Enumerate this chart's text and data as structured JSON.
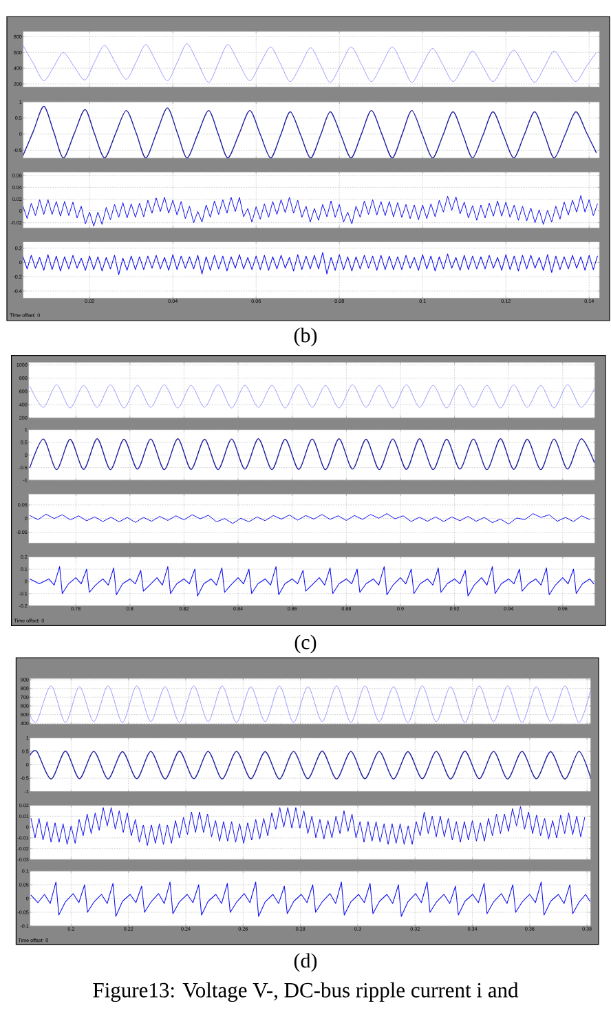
{
  "chart_data": [
    {
      "type": "line",
      "x": [
        0.004,
        0.0065,
        0.009,
        0.0114,
        0.0137,
        0.0163,
        0.0189,
        0.0212,
        0.0236,
        0.0262,
        0.0288,
        0.0312,
        0.0335,
        0.0361,
        0.0387,
        0.0411,
        0.0434,
        0.046,
        0.0486,
        0.0509,
        0.0532,
        0.0559,
        0.0585,
        0.061,
        0.0635,
        0.0659,
        0.0682,
        0.0707,
        0.0731,
        0.0755,
        0.0778,
        0.0803,
        0.0828,
        0.0853,
        0.0877,
        0.0902,
        0.0927,
        0.0951,
        0.0974,
        0.0999,
        0.1024,
        0.1049,
        0.1073,
        0.1097,
        0.112,
        0.1145,
        0.1169,
        0.1194,
        0.1219,
        0.1244,
        0.1269,
        0.1293,
        0.1316,
        0.1342,
        0.1368,
        0.1393,
        0.1417
      ],
      "values": [
        690,
        460,
        240,
        420,
        600,
        420,
        250,
        480,
        690,
        470,
        260,
        480,
        700,
        470,
        240,
        480,
        710,
        470,
        220,
        460,
        700,
        460,
        240,
        460,
        670,
        450,
        230,
        440,
        660,
        440,
        220,
        440,
        670,
        450,
        230,
        450,
        670,
        450,
        220,
        440,
        650,
        440,
        230,
        420,
        620,
        420,
        230,
        430,
        630,
        430,
        220,
        420,
        620,
        420,
        230,
        420,
        600
      ],
      "color": "#8080ff",
      "xlim": [
        0.004,
        0.1425
      ],
      "xticks": [
        0.02,
        0.04,
        0.06,
        0.08,
        0.1,
        0.12,
        0.14
      ],
      "ylim": [
        160,
        870
      ],
      "yticks": [
        200,
        400,
        600,
        800
      ],
      "grid": true,
      "tick_labels": "y"
    },
    {
      "type": "line",
      "x": [
        0.004,
        0.0065,
        0.009,
        0.0114,
        0.0137,
        0.0163,
        0.0189,
        0.0212,
        0.0236,
        0.0262,
        0.0288,
        0.0312,
        0.0335,
        0.0361,
        0.0387,
        0.0411,
        0.0434,
        0.046,
        0.0486,
        0.0509,
        0.0532,
        0.0559,
        0.0585,
        0.061,
        0.0635,
        0.0659,
        0.0682,
        0.0707,
        0.0731,
        0.0755,
        0.0778,
        0.0803,
        0.0828,
        0.0853,
        0.0877,
        0.0902,
        0.0927,
        0.0951,
        0.0974,
        0.0999,
        0.1024,
        0.1049,
        0.1073,
        0.1097,
        0.112,
        0.1145,
        0.1169,
        0.1194,
        0.1219,
        0.1244,
        0.1269,
        0.1293,
        0.1316,
        0.1342,
        0.1368,
        0.1393,
        0.1417
      ],
      "values": [
        -0.67,
        0.09,
        0.86,
        0.06,
        -0.74,
        0.01,
        0.76,
        0.0,
        -0.74,
        0.0,
        0.73,
        0.03,
        -0.74,
        0.04,
        0.81,
        0.03,
        -0.74,
        0.0,
        0.73,
        0.0,
        -0.74,
        0.0,
        0.73,
        -0.01,
        -0.74,
        -0.03,
        0.69,
        -0.03,
        -0.74,
        -0.03,
        0.69,
        -0.01,
        -0.74,
        0.0,
        0.73,
        0.0,
        -0.74,
        0.0,
        0.73,
        -0.01,
        -0.74,
        -0.03,
        0.69,
        -0.03,
        -0.74,
        -0.03,
        0.69,
        -0.03,
        -0.74,
        -0.03,
        0.69,
        -0.03,
        -0.74,
        -0.03,
        0.69,
        0.06,
        -0.57
      ],
      "color": "#2020a0",
      "xlim": [
        0.004,
        0.1425
      ],
      "xticks": [
        0.02,
        0.04,
        0.06,
        0.08,
        0.1,
        0.12,
        0.14
      ],
      "ylim": [
        -0.75,
        1
      ],
      "yticks": [
        -0.5,
        0,
        0.5,
        1
      ],
      "grid": true,
      "tick_labels": "y"
    },
    {
      "type": "line",
      "x": [
        0.004,
        0.005,
        0.006,
        0.007,
        0.008,
        0.009,
        0.01,
        0.011,
        0.012,
        0.013,
        0.014,
        0.015,
        0.016,
        0.017,
        0.018,
        0.019,
        0.02,
        0.021,
        0.022,
        0.023,
        0.024,
        0.025,
        0.026,
        0.027,
        0.028,
        0.029,
        0.03,
        0.031,
        0.032,
        0.033,
        0.034,
        0.035,
        0.036,
        0.037,
        0.038,
        0.039,
        0.04,
        0.041,
        0.042,
        0.043,
        0.044,
        0.045,
        0.046,
        0.047,
        0.048,
        0.049,
        0.05,
        0.051,
        0.052,
        0.053,
        0.054,
        0.055,
        0.056,
        0.057,
        0.058,
        0.059,
        0.06,
        0.061,
        0.062,
        0.063,
        0.064,
        0.065,
        0.066,
        0.067,
        0.068,
        0.069,
        0.07,
        0.071,
        0.072,
        0.073,
        0.074,
        0.075,
        0.076,
        0.077,
        0.078,
        0.079,
        0.08,
        0.081,
        0.082,
        0.083,
        0.084,
        0.085,
        0.086,
        0.087,
        0.088,
        0.089,
        0.09,
        0.091,
        0.092,
        0.093,
        0.094,
        0.095,
        0.096,
        0.097,
        0.098,
        0.099,
        0.1,
        0.101,
        0.102,
        0.103,
        0.104,
        0.105,
        0.106,
        0.107,
        0.108,
        0.109,
        0.11,
        0.111,
        0.112,
        0.113,
        0.114,
        0.115,
        0.116,
        0.117,
        0.118,
        0.119,
        0.12,
        0.121,
        0.122,
        0.123,
        0.124,
        0.125,
        0.126,
        0.127,
        0.128,
        0.129,
        0.13,
        0.131,
        0.132,
        0.133,
        0.134,
        0.135,
        0.136,
        0.137,
        0.138,
        0.139,
        0.14,
        0.141,
        0.142
      ],
      "values": [
        0.008,
        -0.013,
        0.013,
        -0.008,
        0.019,
        -0.006,
        0.019,
        -0.006,
        0.016,
        -0.009,
        0.016,
        -0.008,
        0.015,
        -0.012,
        0.008,
        -0.022,
        -0.002,
        -0.026,
        -0.002,
        -0.023,
        0.006,
        -0.015,
        0.011,
        -0.011,
        0.014,
        -0.012,
        0.012,
        -0.011,
        0.013,
        -0.01,
        0.018,
        -0.004,
        0.022,
        -0.001,
        0.023,
        -0.004,
        0.018,
        -0.007,
        0.016,
        -0.013,
        0.008,
        -0.02,
        -0.001,
        -0.019,
        0.01,
        -0.011,
        0.017,
        -0.006,
        0.019,
        -0.004,
        0.023,
        -0.001,
        0.023,
        -0.01,
        0.004,
        -0.019,
        0.007,
        -0.014,
        0.012,
        -0.011,
        0.016,
        -0.006,
        0.019,
        -0.003,
        0.023,
        -0.004,
        0.018,
        -0.011,
        0.008,
        -0.019,
        0.004,
        -0.016,
        0.011,
        -0.01,
        0.017,
        -0.011,
        0.011,
        -0.019,
        -0.002,
        -0.022,
        0.008,
        -0.011,
        0.017,
        -0.006,
        0.019,
        -0.007,
        0.016,
        -0.008,
        0.016,
        -0.01,
        0.014,
        -0.011,
        0.011,
        -0.013,
        0.01,
        -0.015,
        0.01,
        -0.013,
        0.012,
        -0.01,
        0.018,
        -0.002,
        0.025,
        0.001,
        0.024,
        -0.005,
        0.015,
        -0.012,
        0.009,
        -0.016,
        0.01,
        -0.012,
        0.013,
        -0.009,
        0.017,
        -0.009,
        0.015,
        -0.011,
        0.01,
        -0.016,
        0.008,
        -0.017,
        0.005,
        -0.02,
        0.002,
        -0.023,
        0.001,
        -0.019,
        0.008,
        -0.014,
        0.015,
        -0.007,
        0.018,
        -0.002,
        0.026,
        -0.002,
        0.019,
        -0.008,
        0.012
      ],
      "color": "#1010f0",
      "xlim": [
        0.004,
        0.1425
      ],
      "xticks": [
        0.02,
        0.04,
        0.06,
        0.08,
        0.1,
        0.12,
        0.14
      ],
      "ylim": [
        -0.029,
        0.066
      ],
      "yticks": [
        -0.02,
        0,
        0.02,
        0.04,
        0.06
      ],
      "grid": true,
      "tick_labels": "y"
    },
    {
      "type": "line",
      "x": [
        0.004,
        0.005,
        0.006,
        0.007,
        0.008,
        0.009,
        0.01,
        0.011,
        0.012,
        0.013,
        0.014,
        0.015,
        0.016,
        0.017,
        0.018,
        0.019,
        0.02,
        0.021,
        0.022,
        0.023,
        0.024,
        0.025,
        0.026,
        0.027,
        0.028,
        0.029,
        0.03,
        0.031,
        0.032,
        0.033,
        0.034,
        0.035,
        0.036,
        0.037,
        0.038,
        0.039,
        0.04,
        0.041,
        0.042,
        0.043,
        0.044,
        0.045,
        0.046,
        0.047,
        0.048,
        0.049,
        0.05,
        0.051,
        0.052,
        0.053,
        0.054,
        0.055,
        0.056,
        0.057,
        0.058,
        0.059,
        0.06,
        0.061,
        0.062,
        0.063,
        0.064,
        0.065,
        0.066,
        0.067,
        0.068,
        0.069,
        0.07,
        0.071,
        0.072,
        0.073,
        0.074,
        0.075,
        0.076,
        0.077,
        0.078,
        0.079,
        0.08,
        0.081,
        0.082,
        0.083,
        0.084,
        0.085,
        0.086,
        0.087,
        0.088,
        0.089,
        0.09,
        0.091,
        0.092,
        0.093,
        0.094,
        0.095,
        0.096,
        0.097,
        0.098,
        0.099,
        0.1,
        0.101,
        0.102,
        0.103,
        0.104,
        0.105,
        0.106,
        0.107,
        0.108,
        0.109,
        0.11,
        0.111,
        0.112,
        0.113,
        0.114,
        0.115,
        0.116,
        0.117,
        0.118,
        0.119,
        0.12,
        0.121,
        0.122,
        0.123,
        0.124,
        0.125,
        0.126,
        0.127,
        0.128,
        0.129,
        0.13,
        0.131,
        0.132,
        0.133,
        0.134,
        0.135,
        0.136,
        0.137,
        0.138,
        0.139,
        0.14,
        0.141,
        0.142
      ],
      "values": [
        0.08,
        -0.09,
        0.1,
        -0.08,
        0.07,
        -0.11,
        0.11,
        -0.1,
        0.09,
        -0.12,
        0.08,
        -0.09,
        0.1,
        -0.08,
        0.06,
        -0.11,
        0.09,
        -0.1,
        0.08,
        -0.12,
        0.07,
        -0.09,
        0.1,
        -0.17,
        0.06,
        -0.11,
        0.09,
        -0.1,
        0.08,
        -0.1,
        0.09,
        -0.08,
        0.1,
        -0.09,
        0.07,
        -0.11,
        0.11,
        -0.1,
        0.09,
        -0.08,
        0.08,
        -0.09,
        0.1,
        -0.16,
        0.08,
        -0.11,
        0.1,
        -0.09,
        0.09,
        -0.12,
        0.08,
        -0.08,
        0.11,
        -0.09,
        0.07,
        -0.1,
        0.09,
        -0.1,
        0.1,
        -0.11,
        0.08,
        -0.09,
        0.1,
        -0.08,
        0.07,
        -0.12,
        0.11,
        -0.1,
        0.09,
        -0.09,
        0.1,
        -0.09,
        0.14,
        -0.16,
        0.07,
        -0.11,
        0.11,
        -0.1,
        0.08,
        -0.12,
        0.08,
        -0.09,
        0.1,
        -0.08,
        0.09,
        -0.11,
        0.1,
        -0.1,
        0.09,
        -0.1,
        0.08,
        -0.1,
        0.1,
        -0.08,
        0.07,
        -0.11,
        0.11,
        -0.09,
        0.09,
        -0.12,
        0.08,
        -0.09,
        0.12,
        -0.08,
        0.07,
        -0.11,
        0.1,
        -0.1,
        0.09,
        -0.09,
        0.08,
        -0.09,
        0.1,
        -0.08,
        0.07,
        -0.11,
        0.11,
        -0.1,
        0.09,
        -0.12,
        0.1,
        -0.09,
        0.1,
        -0.08,
        0.07,
        -0.11,
        0.11,
        -0.14,
        0.09,
        -0.1,
        0.08,
        -0.09,
        0.1,
        -0.08,
        0.08,
        -0.11,
        0.1,
        -0.1,
        0.09
      ],
      "color": "#1010f0",
      "xlim": [
        0.004,
        0.1425
      ],
      "xticks": [
        0.02,
        0.04,
        0.06,
        0.08,
        0.1,
        0.12,
        0.14
      ],
      "ylim": [
        -0.5,
        0.29
      ],
      "yticks": [
        -0.4,
        -0.2,
        0,
        0.2
      ],
      "grid": true,
      "annotations": [
        "Time offset: 0",
        "(b)"
      ]
    },
    {
      "type": "line",
      "x": [
        0.763,
        0.768,
        0.7729,
        0.7779,
        0.7829,
        0.7879,
        0.7928,
        0.7978,
        0.8028,
        0.8077,
        0.8127,
        0.8177,
        0.8226,
        0.8276,
        0.8326,
        0.8376,
        0.8425,
        0.8475,
        0.8525,
        0.8574,
        0.8624,
        0.8674,
        0.8723,
        0.8773,
        0.8823,
        0.8873,
        0.8922,
        0.8972,
        0.9022,
        0.9071,
        0.9121,
        0.9171,
        0.922,
        0.927,
        0.932,
        0.937,
        0.9419,
        0.9469,
        0.9519,
        0.9568,
        0.9618,
        0.9668,
        0.9717
      ],
      "values": [
        680,
        360,
        700,
        350,
        690,
        360,
        700,
        350,
        690,
        360,
        700,
        350,
        690,
        360,
        700,
        350,
        690,
        360,
        690,
        350,
        700,
        360,
        690,
        350,
        700,
        360,
        690,
        350,
        700,
        360,
        690,
        350,
        700,
        360,
        690,
        350,
        700,
        360,
        690,
        350,
        700,
        360,
        640
      ],
      "color": "#8080ff",
      "xlim": [
        0.7625,
        0.9719
      ],
      "xticks": [
        0.78,
        0.8,
        0.82,
        0.84,
        0.86,
        0.88,
        0.9,
        0.92,
        0.94,
        0.96
      ],
      "ylim": [
        200,
        1040
      ],
      "yticks": [
        200,
        400,
        600,
        800,
        1000
      ],
      "grid": true,
      "tick_labels": "y"
    },
    {
      "type": "line",
      "x": [
        0.763,
        0.768,
        0.7729,
        0.7779,
        0.7829,
        0.7879,
        0.7928,
        0.7978,
        0.8028,
        0.8077,
        0.8127,
        0.8177,
        0.8226,
        0.8276,
        0.8326,
        0.8376,
        0.8425,
        0.8475,
        0.8525,
        0.8574,
        0.8624,
        0.8674,
        0.8723,
        0.8773,
        0.8823,
        0.8873,
        0.8922,
        0.8972,
        0.9022,
        0.9071,
        0.9121,
        0.9171,
        0.922,
        0.927,
        0.932,
        0.937,
        0.9419,
        0.9469,
        0.9519,
        0.9568,
        0.9618,
        0.9668,
        0.9717
      ],
      "values": [
        -0.5,
        0.63,
        -0.58,
        0.62,
        -0.57,
        0.64,
        -0.58,
        0.62,
        -0.56,
        0.63,
        -0.58,
        0.64,
        -0.57,
        0.62,
        -0.58,
        0.63,
        -0.56,
        0.64,
        -0.58,
        0.62,
        -0.57,
        0.63,
        -0.58,
        0.64,
        -0.56,
        0.62,
        -0.58,
        0.63,
        -0.57,
        0.64,
        -0.58,
        0.62,
        -0.56,
        0.63,
        -0.58,
        0.64,
        -0.57,
        0.62,
        -0.58,
        0.63,
        -0.56,
        0.64,
        -0.3
      ],
      "color": "#2020a0",
      "xlim": [
        0.7625,
        0.9719
      ],
      "xticks": [
        0.78,
        0.8,
        0.82,
        0.84,
        0.86,
        0.88,
        0.9,
        0.92,
        0.94,
        0.96
      ],
      "ylim": [
        -1,
        1
      ],
      "yticks": [
        -1,
        -0.5,
        0,
        0.5,
        1
      ],
      "grid": true,
      "tick_labels": "y"
    },
    {
      "type": "line",
      "x": [
        0.763,
        0.766,
        0.769,
        0.772,
        0.775,
        0.778,
        0.781,
        0.784,
        0.787,
        0.79,
        0.793,
        0.796,
        0.799,
        0.802,
        0.805,
        0.808,
        0.811,
        0.814,
        0.817,
        0.82,
        0.823,
        0.826,
        0.829,
        0.832,
        0.835,
        0.838,
        0.841,
        0.844,
        0.847,
        0.85,
        0.853,
        0.856,
        0.859,
        0.862,
        0.865,
        0.868,
        0.871,
        0.874,
        0.877,
        0.88,
        0.883,
        0.886,
        0.889,
        0.892,
        0.895,
        0.898,
        0.901,
        0.904,
        0.907,
        0.91,
        0.913,
        0.916,
        0.919,
        0.922,
        0.925,
        0.928,
        0.931,
        0.934,
        0.937,
        0.94,
        0.943,
        0.946,
        0.949,
        0.952,
        0.955,
        0.958,
        0.961,
        0.964,
        0.967,
        0.97
      ],
      "values": [
        0.011,
        -0.004,
        0.016,
        0.0,
        0.014,
        -0.005,
        0.01,
        -0.008,
        0.006,
        -0.011,
        0.005,
        -0.012,
        0.004,
        -0.014,
        0.004,
        -0.01,
        0.008,
        -0.007,
        0.01,
        -0.005,
        0.014,
        -0.001,
        0.012,
        -0.012,
        0.0,
        -0.018,
        0.001,
        -0.012,
        0.006,
        -0.008,
        0.011,
        -0.002,
        0.013,
        -0.006,
        0.011,
        -0.002,
        0.015,
        -0.003,
        0.01,
        -0.007,
        0.011,
        -0.003,
        0.015,
        0.001,
        0.018,
        -0.001,
        0.01,
        -0.011,
        0.005,
        -0.01,
        0.006,
        -0.011,
        0.006,
        -0.008,
        0.008,
        -0.01,
        0.004,
        -0.015,
        -0.002,
        -0.02,
        0.002,
        -0.004,
        0.018,
        0.004,
        0.014,
        -0.01,
        0.004,
        -0.011,
        0.01,
        -0.004
      ],
      "color": "#1010f0",
      "xlim": [
        0.7625,
        0.9719
      ],
      "xticks": [
        0.78,
        0.8,
        0.82,
        0.84,
        0.86,
        0.88,
        0.9,
        0.92,
        0.94,
        0.96
      ],
      "ylim": [
        -0.09,
        0.09
      ],
      "yticks": [
        -0.05,
        0,
        0.05
      ],
      "grid": true,
      "tick_labels": "y"
    },
    {
      "type": "line",
      "x": [
        0.763,
        0.7665,
        0.77,
        0.772,
        0.774,
        0.775,
        0.7773,
        0.78,
        0.782,
        0.784,
        0.785,
        0.7873,
        0.79,
        0.792,
        0.794,
        0.795,
        0.7973,
        0.8,
        0.802,
        0.804,
        0.805,
        0.8073,
        0.81,
        0.812,
        0.814,
        0.815,
        0.8173,
        0.82,
        0.822,
        0.824,
        0.825,
        0.8273,
        0.83,
        0.832,
        0.834,
        0.835,
        0.8373,
        0.84,
        0.842,
        0.844,
        0.845,
        0.8473,
        0.85,
        0.852,
        0.854,
        0.855,
        0.8573,
        0.86,
        0.862,
        0.864,
        0.865,
        0.8673,
        0.87,
        0.872,
        0.874,
        0.875,
        0.8773,
        0.88,
        0.882,
        0.884,
        0.885,
        0.8873,
        0.89,
        0.892,
        0.894,
        0.895,
        0.8973,
        0.9,
        0.902,
        0.904,
        0.905,
        0.9073,
        0.91,
        0.912,
        0.914,
        0.915,
        0.9173,
        0.92,
        0.922,
        0.924,
        0.925,
        0.9273,
        0.93,
        0.932,
        0.934,
        0.935,
        0.9373,
        0.94,
        0.942,
        0.944,
        0.945,
        0.9473,
        0.95,
        0.952,
        0.954,
        0.955,
        0.9573,
        0.96,
        0.962,
        0.964,
        0.965,
        0.9673,
        0.97,
        0.9715
      ],
      "values": [
        0.02,
        -0.02,
        0.02,
        -0.03,
        0.12,
        -0.1,
        -0.02,
        0.03,
        -0.02,
        0.1,
        -0.09,
        -0.03,
        0.02,
        -0.03,
        0.11,
        -0.11,
        -0.02,
        0.02,
        -0.02,
        0.09,
        -0.08,
        -0.03,
        0.03,
        -0.03,
        0.12,
        -0.1,
        -0.02,
        0.02,
        -0.02,
        0.1,
        -0.12,
        -0.02,
        0.02,
        -0.03,
        0.11,
        -0.09,
        -0.03,
        0.03,
        -0.02,
        0.1,
        -0.1,
        -0.02,
        0.02,
        -0.03,
        0.12,
        -0.11,
        -0.02,
        0.02,
        -0.02,
        0.09,
        -0.08,
        -0.03,
        0.03,
        -0.03,
        0.11,
        -0.1,
        -0.02,
        0.02,
        -0.02,
        0.1,
        -0.09,
        -0.02,
        0.02,
        -0.03,
        0.12,
        -0.11,
        -0.03,
        0.03,
        -0.02,
        0.1,
        -0.1,
        -0.02,
        0.02,
        -0.03,
        0.11,
        -0.09,
        -0.02,
        0.02,
        -0.02,
        0.09,
        -0.12,
        -0.03,
        0.03,
        -0.03,
        0.12,
        -0.1,
        -0.02,
        0.02,
        -0.02,
        0.1,
        -0.08,
        -0.02,
        0.02,
        -0.03,
        0.11,
        -0.11,
        -0.03,
        0.03,
        -0.02,
        0.1,
        -0.1,
        -0.02,
        0.02,
        -0.02
      ],
      "color": "#1010f0",
      "xlim": [
        0.7625,
        0.9719
      ],
      "xticks": [
        0.78,
        0.8,
        0.82,
        0.84,
        0.86,
        0.88,
        0.9,
        0.92,
        0.94,
        0.96
      ],
      "ylim": [
        -0.2,
        0.2
      ],
      "yticks": [
        -0.2,
        -0.1,
        0,
        0.1,
        0.2
      ],
      "grid": true,
      "annotations": [
        "Time offset: 0",
        "(c)"
      ]
    },
    {
      "type": "line",
      "x": [
        0.1856,
        0.188,
        0.193,
        0.198,
        0.2029,
        0.2079,
        0.2129,
        0.2179,
        0.2229,
        0.2278,
        0.2328,
        0.2378,
        0.2428,
        0.2478,
        0.2527,
        0.2577,
        0.2627,
        0.2677,
        0.2727,
        0.2776,
        0.2826,
        0.2876,
        0.2926,
        0.2976,
        0.3025,
        0.3075,
        0.3125,
        0.3175,
        0.3225,
        0.3274,
        0.3324,
        0.3374,
        0.3424,
        0.3474,
        0.3523,
        0.3573,
        0.3623,
        0.3673,
        0.3723,
        0.3772,
        0.3813
      ],
      "values": [
        500,
        420,
        830,
        410,
        820,
        420,
        830,
        410,
        830,
        420,
        820,
        410,
        830,
        420,
        830,
        410,
        820,
        420,
        830,
        410,
        820,
        420,
        830,
        410,
        830,
        420,
        820,
        410,
        830,
        420,
        820,
        410,
        830,
        420,
        830,
        410,
        820,
        420,
        830,
        410,
        790
      ],
      "color": "#8080ff",
      "xlim": [
        0.1856,
        0.3813
      ],
      "xticks": [
        0.2,
        0.22,
        0.24,
        0.26,
        0.28,
        0.3,
        0.32,
        0.34,
        0.36,
        0.38
      ],
      "ylim": [
        390,
        916
      ],
      "yticks": [
        400,
        500,
        600,
        700,
        800,
        900
      ],
      "grid": true,
      "tick_labels": "y"
    },
    {
      "type": "line",
      "x": [
        0.1856,
        0.188,
        0.193,
        0.198,
        0.2029,
        0.2079,
        0.2129,
        0.2179,
        0.2229,
        0.2278,
        0.2328,
        0.2378,
        0.2428,
        0.2478,
        0.2527,
        0.2577,
        0.2627,
        0.2677,
        0.2727,
        0.2776,
        0.2826,
        0.2876,
        0.2926,
        0.2976,
        0.3025,
        0.3075,
        0.3125,
        0.3175,
        0.3225,
        0.3274,
        0.3324,
        0.3374,
        0.3424,
        0.3474,
        0.3523,
        0.3573,
        0.3623,
        0.3673,
        0.3723,
        0.3772,
        0.3813
      ],
      "values": [
        0.35,
        0.5,
        -0.53,
        0.51,
        -0.52,
        0.5,
        -0.53,
        0.49,
        -0.52,
        0.5,
        -0.53,
        0.51,
        -0.52,
        0.5,
        -0.53,
        0.5,
        -0.52,
        0.49,
        -0.53,
        0.5,
        -0.52,
        0.51,
        -0.53,
        0.5,
        -0.52,
        0.5,
        -0.53,
        0.49,
        -0.52,
        0.5,
        -0.53,
        0.51,
        -0.52,
        0.5,
        -0.53,
        0.5,
        -0.52,
        0.49,
        -0.53,
        0.5,
        -0.5
      ],
      "color": "#2020a0",
      "xlim": [
        0.1856,
        0.3813
      ],
      "xticks": [
        0.2,
        0.22,
        0.24,
        0.26,
        0.28,
        0.3,
        0.32,
        0.34,
        0.36,
        0.38
      ],
      "ylim": [
        -1,
        1
      ],
      "yticks": [
        -1,
        -0.5,
        0,
        0.5,
        1
      ],
      "grid": true,
      "tick_labels": "y"
    },
    {
      "type": "line",
      "x": [
        0.186,
        0.1874,
        0.1888,
        0.1902,
        0.1916,
        0.193,
        0.1944,
        0.1958,
        0.1972,
        0.1986,
        0.2,
        0.2014,
        0.2028,
        0.2042,
        0.2056,
        0.207,
        0.2084,
        0.2098,
        0.2112,
        0.2126,
        0.214,
        0.2154,
        0.2168,
        0.2182,
        0.2196,
        0.221,
        0.2224,
        0.2238,
        0.2252,
        0.2266,
        0.228,
        0.2294,
        0.2308,
        0.2322,
        0.2336,
        0.235,
        0.2364,
        0.2378,
        0.2392,
        0.2406,
        0.242,
        0.2434,
        0.2448,
        0.2462,
        0.2476,
        0.249,
        0.2504,
        0.2518,
        0.2532,
        0.2546,
        0.256,
        0.2574,
        0.2588,
        0.2602,
        0.2616,
        0.263,
        0.2644,
        0.2658,
        0.2672,
        0.2686,
        0.27,
        0.2714,
        0.2728,
        0.2742,
        0.2756,
        0.277,
        0.2784,
        0.2798,
        0.2812,
        0.2826,
        0.284,
        0.2854,
        0.2868,
        0.2882,
        0.2896,
        0.291,
        0.2924,
        0.2938,
        0.2952,
        0.2966,
        0.298,
        0.2994,
        0.3008,
        0.3022,
        0.3036,
        0.305,
        0.3064,
        0.3078,
        0.3092,
        0.3106,
        0.312,
        0.3134,
        0.3148,
        0.3162,
        0.3176,
        0.319,
        0.3204,
        0.3218,
        0.3232,
        0.3246,
        0.326,
        0.3274,
        0.3288,
        0.3302,
        0.3316,
        0.333,
        0.3344,
        0.3358,
        0.3372,
        0.3386,
        0.34,
        0.3414,
        0.3428,
        0.3442,
        0.3456,
        0.347,
        0.3484,
        0.3498,
        0.3512,
        0.3526,
        0.354,
        0.3554,
        0.3568,
        0.3582,
        0.3596,
        0.361,
        0.3624,
        0.3638,
        0.3652,
        0.3666,
        0.368,
        0.3694,
        0.3708,
        0.3722,
        0.3736,
        0.375,
        0.3764,
        0.3778,
        0.3792
      ],
      "values": [
        0.008,
        -0.01,
        0.008,
        -0.012,
        0.005,
        -0.014,
        0.004,
        -0.014,
        0.003,
        -0.016,
        0.001,
        -0.015,
        0.007,
        -0.008,
        0.012,
        -0.006,
        0.013,
        -0.003,
        0.018,
        0.001,
        0.018,
        -0.002,
        0.015,
        -0.005,
        0.013,
        -0.008,
        0.007,
        -0.014,
        0.002,
        -0.017,
        0.002,
        -0.015,
        0.003,
        -0.016,
        0.002,
        -0.015,
        0.006,
        -0.01,
        0.009,
        -0.007,
        0.014,
        -0.005,
        0.014,
        -0.005,
        0.012,
        -0.009,
        0.006,
        -0.013,
        0.005,
        -0.013,
        0.005,
        -0.014,
        0.003,
        -0.015,
        0.004,
        -0.012,
        0.007,
        -0.011,
        0.008,
        -0.008,
        0.013,
        -0.002,
        0.018,
        0.0,
        0.018,
        -0.001,
        0.018,
        -0.001,
        0.015,
        -0.006,
        0.01,
        -0.01,
        0.007,
        -0.011,
        0.006,
        -0.01,
        0.01,
        -0.006,
        0.015,
        -0.004,
        0.012,
        -0.01,
        0.005,
        -0.014,
        0.005,
        -0.013,
        0.005,
        -0.014,
        0.003,
        -0.016,
        0.003,
        -0.015,
        0.003,
        -0.016,
        0.001,
        -0.016,
        0.005,
        -0.008,
        0.014,
        -0.006,
        0.01,
        -0.009,
        0.01,
        -0.009,
        0.008,
        -0.012,
        0.005,
        -0.014,
        0.005,
        -0.012,
        0.006,
        -0.013,
        0.004,
        -0.013,
        0.008,
        -0.008,
        0.012,
        -0.006,
        0.012,
        -0.004,
        0.017,
        0.001,
        0.019,
        -0.002,
        0.014,
        -0.006,
        0.011,
        -0.008,
        0.008,
        -0.011,
        0.006,
        -0.01,
        0.011,
        -0.006,
        0.013,
        -0.007,
        0.01,
        -0.009,
        0.009
      ],
      "color": "#1010f0",
      "xlim": [
        0.1856,
        0.3813
      ],
      "xticks": [
        0.2,
        0.22,
        0.24,
        0.26,
        0.28,
        0.3,
        0.32,
        0.34,
        0.36,
        0.38
      ],
      "ylim": [
        -0.03,
        0.02
      ],
      "yticks": [
        -0.03,
        -0.02,
        -0.01,
        0,
        0.01,
        0.02
      ],
      "grid": true,
      "tick_labels": "y"
    },
    {
      "type": "line",
      "x": [
        0.186,
        0.1884,
        0.1907,
        0.1927,
        0.1947,
        0.1957,
        0.198,
        0.2007,
        0.2027,
        0.2047,
        0.2057,
        0.208,
        0.2106,
        0.2126,
        0.2146,
        0.2156,
        0.2179,
        0.2206,
        0.2226,
        0.2246,
        0.2256,
        0.2279,
        0.2305,
        0.2325,
        0.2345,
        0.2355,
        0.2378,
        0.2405,
        0.2425,
        0.2445,
        0.2455,
        0.2478,
        0.2505,
        0.2525,
        0.2545,
        0.2555,
        0.2578,
        0.2604,
        0.2624,
        0.2644,
        0.2654,
        0.2677,
        0.2704,
        0.2724,
        0.2744,
        0.2754,
        0.2777,
        0.2803,
        0.2823,
        0.2843,
        0.2853,
        0.2876,
        0.2903,
        0.2923,
        0.2943,
        0.2953,
        0.2976,
        0.3003,
        0.3023,
        0.3043,
        0.3053,
        0.3076,
        0.3102,
        0.3122,
        0.3142,
        0.3152,
        0.3175,
        0.3202,
        0.3222,
        0.3242,
        0.3252,
        0.3275,
        0.3301,
        0.3321,
        0.3341,
        0.3351,
        0.3374,
        0.3401,
        0.3421,
        0.3441,
        0.3451,
        0.3474,
        0.3501,
        0.3521,
        0.3541,
        0.3551,
        0.3574,
        0.36,
        0.362,
        0.364,
        0.365,
        0.3673,
        0.37,
        0.372,
        0.374,
        0.375,
        0.3773,
        0.3795,
        0.381
      ],
      "values": [
        0.012,
        -0.015,
        0.015,
        -0.018,
        0.06,
        -0.06,
        -0.012,
        0.018,
        -0.015,
        0.05,
        -0.05,
        -0.012,
        0.015,
        -0.018,
        0.055,
        -0.065,
        -0.01,
        0.015,
        -0.015,
        0.045,
        -0.05,
        -0.012,
        0.018,
        -0.018,
        0.06,
        -0.055,
        -0.012,
        0.015,
        -0.015,
        0.05,
        -0.06,
        -0.01,
        0.015,
        -0.018,
        0.055,
        -0.05,
        -0.012,
        0.018,
        -0.015,
        0.06,
        -0.065,
        -0.012,
        0.015,
        -0.018,
        0.045,
        -0.055,
        -0.01,
        0.015,
        -0.015,
        0.05,
        -0.05,
        -0.012,
        0.018,
        -0.018,
        0.06,
        -0.06,
        -0.012,
        0.015,
        -0.015,
        0.055,
        -0.055,
        -0.01,
        0.015,
        -0.018,
        0.05,
        -0.065,
        -0.012,
        0.018,
        -0.015,
        0.06,
        -0.05,
        -0.012,
        0.015,
        -0.018,
        0.045,
        -0.06,
        -0.01,
        0.015,
        -0.015,
        0.055,
        -0.055,
        -0.012,
        0.018,
        -0.018,
        0.05,
        -0.05,
        -0.012,
        0.015,
        -0.015,
        0.06,
        -0.06,
        -0.01,
        0.015,
        -0.018,
        0.05,
        -0.055,
        -0.012,
        0.015,
        -0.01
      ],
      "color": "#1010f0",
      "xlim": [
        0.1856,
        0.3813
      ],
      "xticks": [
        0.2,
        0.22,
        0.24,
        0.26,
        0.28,
        0.3,
        0.32,
        0.34,
        0.36,
        0.38
      ],
      "ylim": [
        -0.1,
        0.1
      ],
      "yticks": [
        -0.1,
        -0.05,
        0,
        0.05,
        0.1
      ],
      "grid": true,
      "annotations": [
        "Time offset: 0",
        "(d)",
        "Figure13: Voltage V-, DC-bus ripple current i and"
      ]
    }
  ]
}
